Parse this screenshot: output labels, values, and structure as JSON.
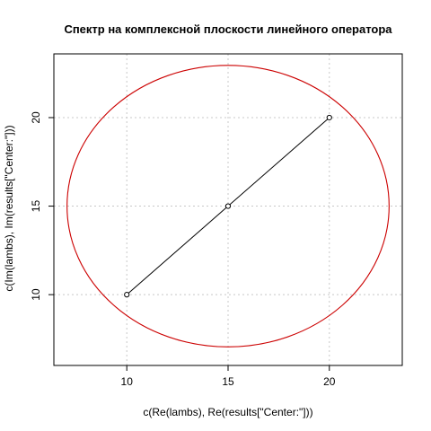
{
  "chart_data": {
    "type": "scatter",
    "title": "Спектр на комплексной плоскости линейного оператора",
    "xlabel": "c(Re(lambs), Re(results[\"Center:\"]))",
    "ylabel": "c(Im(lambs), Im(results[\"Center:\"]))",
    "xlim": [
      6.4,
      23.6
    ],
    "ylim": [
      6.0,
      23.6
    ],
    "xticks": [
      10,
      15,
      20
    ],
    "yticks": [
      10,
      15,
      20
    ],
    "grid": true,
    "series": [
      {
        "x": [
          10,
          15,
          20
        ],
        "y": [
          10,
          15,
          20
        ],
        "marker": "open-circle",
        "line": true,
        "color": "#000000"
      }
    ],
    "circle": {
      "center": [
        15,
        15
      ],
      "radius": 7.95,
      "color": "#cc0000"
    }
  }
}
